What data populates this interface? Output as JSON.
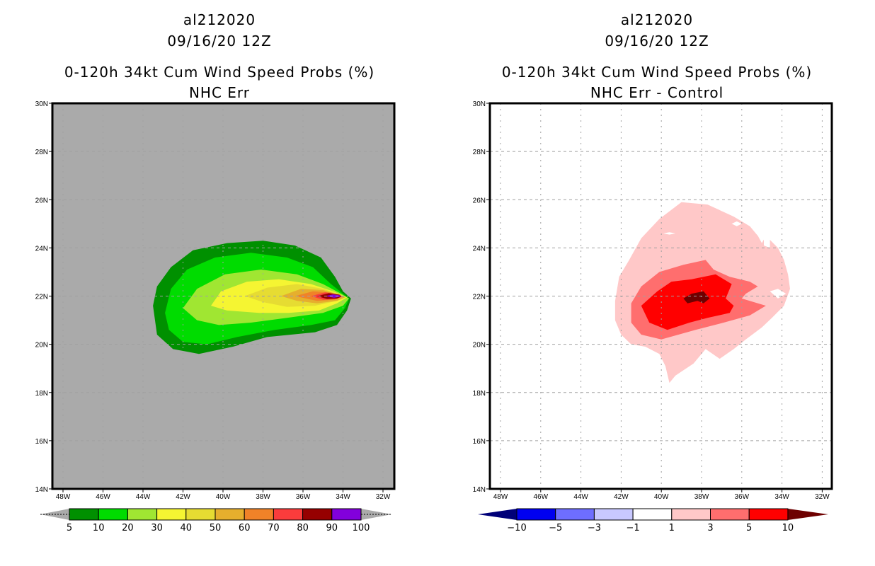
{
  "panels": [
    {
      "id": "left",
      "title_line1": "al212020",
      "title_line2": "09/16/20 12Z",
      "title_line3": "0-120h 34kt Cum Wind Speed Probs (%)",
      "title_line4": "NHC Err",
      "background_color": "#aaaaaa"
    },
    {
      "id": "right",
      "title_line1": "al212020",
      "title_line2": "09/16/20 12Z",
      "title_line3": "0-120h 34kt Cum Wind Speed Probs (%)",
      "title_line4": "NHC Err - Control",
      "background_color": "#ffffff"
    }
  ],
  "chart_data": [
    {
      "type": "heatmap",
      "subtype": "filled-contour-map",
      "title": "al212020 09/16/20 12Z — 0-120h 34kt Cum Wind Speed Probs (%) — NHC Err",
      "x_ticks": [
        "48W",
        "46W",
        "44W",
        "42W",
        "40W",
        "38W",
        "36W",
        "34W",
        "32W"
      ],
      "y_ticks": [
        "30N",
        "28N",
        "26N",
        "24N",
        "22N",
        "20N",
        "18N",
        "16N",
        "14N"
      ],
      "xlim_lonW": [
        48.5,
        31.5
      ],
      "ylim_latN": [
        14,
        30
      ],
      "grid": true,
      "colorbar": {
        "levels": [
          "5",
          "10",
          "20",
          "30",
          "40",
          "50",
          "60",
          "70",
          "80",
          "90",
          "100"
        ],
        "colors": [
          "#009000",
          "#00dc00",
          "#a0e632",
          "#f5f532",
          "#e6dc32",
          "#e6af2d",
          "#f08228",
          "#fa3c3c",
          "#960000",
          "#8200dc"
        ],
        "below_color": "#aaaaaa",
        "above_color": "#aaaaaa"
      },
      "contours": [
        {
          "level": 5,
          "color": "#009000",
          "polygon": [
            [
              43.5,
              21.6
            ],
            [
              43.3,
              22.4
            ],
            [
              42.6,
              23.2
            ],
            [
              41.5,
              23.9
            ],
            [
              39.8,
              24.2
            ],
            [
              38,
              24.3
            ],
            [
              36.4,
              24.1
            ],
            [
              35.1,
              23.6
            ],
            [
              34.4,
              22.8
            ],
            [
              34.0,
              22.2
            ],
            [
              33.6,
              21.9
            ],
            [
              33.8,
              21.4
            ],
            [
              34.3,
              20.8
            ],
            [
              35.4,
              20.5
            ],
            [
              36.6,
              20.4
            ],
            [
              37.8,
              20.3
            ],
            [
              39.5,
              19.9
            ],
            [
              41.2,
              19.6
            ],
            [
              42.5,
              19.8
            ],
            [
              43.3,
              20.4
            ]
          ]
        },
        {
          "level": 10,
          "color": "#00dc00",
          "polygon": [
            [
              42.9,
              21.3
            ],
            [
              42.6,
              22.3
            ],
            [
              41.8,
              23.1
            ],
            [
              40.4,
              23.6
            ],
            [
              38.6,
              23.8
            ],
            [
              36.8,
              23.6
            ],
            [
              35.5,
              23.2
            ],
            [
              34.6,
              22.5
            ],
            [
              34.0,
              22.1
            ],
            [
              33.7,
              21.9
            ],
            [
              33.9,
              21.5
            ],
            [
              34.4,
              21.0
            ],
            [
              35.6,
              20.8
            ],
            [
              37.4,
              20.6
            ],
            [
              39.3,
              20.3
            ],
            [
              40.8,
              20.0
            ],
            [
              42.0,
              20.1
            ],
            [
              42.7,
              20.6
            ]
          ]
        },
        {
          "level": 20,
          "color": "#a0e632",
          "polygon": [
            [
              42.0,
              21.5
            ],
            [
              41.3,
              22.3
            ],
            [
              39.9,
              22.9
            ],
            [
              38.1,
              23.1
            ],
            [
              36.3,
              22.9
            ],
            [
              35.0,
              22.5
            ],
            [
              34.1,
              22.1
            ],
            [
              33.7,
              21.9
            ],
            [
              34.0,
              21.6
            ],
            [
              35.0,
              21.3
            ],
            [
              36.8,
              21.1
            ],
            [
              38.6,
              20.9
            ],
            [
              40.2,
              20.8
            ],
            [
              41.3,
              21.0
            ]
          ]
        },
        {
          "level": 30,
          "color": "#f5f532",
          "polygon": [
            [
              40.6,
              21.6
            ],
            [
              40.1,
              22.2
            ],
            [
              38.8,
              22.6
            ],
            [
              37.2,
              22.7
            ],
            [
              35.6,
              22.5
            ],
            [
              34.5,
              22.2
            ],
            [
              33.8,
              21.95
            ],
            [
              34.3,
              21.7
            ],
            [
              35.2,
              21.4
            ],
            [
              36.7,
              21.3
            ],
            [
              38.2,
              21.3
            ],
            [
              39.8,
              21.4
            ]
          ]
        },
        {
          "level": 40,
          "color": "#e6dc32",
          "polygon": [
            [
              38.9,
              22.0
            ],
            [
              37.8,
              22.35
            ],
            [
              36.3,
              22.5
            ],
            [
              35.0,
              22.3
            ],
            [
              34.1,
              22.05
            ],
            [
              33.85,
              21.95
            ],
            [
              34.3,
              21.8
            ],
            [
              35.4,
              21.6
            ],
            [
              36.8,
              21.55
            ],
            [
              38.0,
              21.75
            ]
          ]
        },
        {
          "level": 50,
          "color": "#e6af2d",
          "polygon": [
            [
              37.1,
              22.0
            ],
            [
              36.1,
              22.3
            ],
            [
              35.0,
              22.25
            ],
            [
              34.2,
              22.05
            ],
            [
              33.9,
              21.95
            ],
            [
              34.3,
              21.8
            ],
            [
              35.3,
              21.7
            ],
            [
              36.3,
              21.8
            ]
          ]
        },
        {
          "level": 60,
          "color": "#f08228",
          "polygon": [
            [
              36.4,
              22.0
            ],
            [
              35.5,
              22.2
            ],
            [
              34.6,
              22.15
            ],
            [
              34.1,
              22.0
            ],
            [
              34.4,
              21.85
            ],
            [
              35.3,
              21.8
            ]
          ]
        },
        {
          "level": 70,
          "color": "#fa3c3c",
          "polygon": [
            [
              35.6,
              22.0
            ],
            [
              34.9,
              22.15
            ],
            [
              34.2,
              22.07
            ],
            [
              34.05,
              21.98
            ],
            [
              34.3,
              21.88
            ],
            [
              35.0,
              21.85
            ]
          ]
        },
        {
          "level": 80,
          "color": "#960000",
          "polygon": [
            [
              35.3,
              22.0
            ],
            [
              34.7,
              22.12
            ],
            [
              34.15,
              22.05
            ],
            [
              34.1,
              21.97
            ],
            [
              34.3,
              21.9
            ],
            [
              34.8,
              21.88
            ]
          ]
        },
        {
          "level": 90,
          "color": "#8200dc",
          "polygon": [
            [
              34.9,
              22.0
            ],
            [
              34.5,
              22.07
            ],
            [
              34.15,
              22.03
            ],
            [
              34.15,
              21.97
            ],
            [
              34.45,
              21.93
            ]
          ]
        }
      ]
    },
    {
      "type": "heatmap",
      "subtype": "filled-contour-map",
      "title": "al212020 09/16/20 12Z — 0-120h 34kt Cum Wind Speed Probs (%) — NHC Err - Control",
      "x_ticks": [
        "48W",
        "46W",
        "44W",
        "42W",
        "40W",
        "38W",
        "36W",
        "34W",
        "32W"
      ],
      "y_ticks": [
        "30N",
        "28N",
        "26N",
        "24N",
        "22N",
        "20N",
        "18N",
        "16N",
        "14N"
      ],
      "xlim_lonW": [
        48.5,
        31.5
      ],
      "ylim_latN": [
        14,
        30
      ],
      "grid": true,
      "colorbar": {
        "levels": [
          "-10",
          "-5",
          "-3",
          "-1",
          "1",
          "3",
          "5",
          "10"
        ],
        "colors": [
          "#0000f0",
          "#6e6eff",
          "#c8c8ff",
          "#ffffff",
          "#ffc8c8",
          "#ff6e6e",
          "#ff0000"
        ],
        "below_color": "#000078",
        "above_color": "#6e0000"
      },
      "contours": [
        {
          "level": 1,
          "color": "#ffc8c8",
          "polygon": [
            [
              42.3,
              21.8
            ],
            [
              42.1,
              22.8
            ],
            [
              41.6,
              23.5
            ],
            [
              41.0,
              24.4
            ],
            [
              40.1,
              25.2
            ],
            [
              39.0,
              25.9
            ],
            [
              37.7,
              25.8
            ],
            [
              36.4,
              25.3
            ],
            [
              35.6,
              24.9
            ],
            [
              35.2,
              24.5
            ],
            [
              35.0,
              24.2
            ],
            [
              34.8,
              24.5
            ],
            [
              34.2,
              24.0
            ],
            [
              33.9,
              23.5
            ],
            [
              33.7,
              22.9
            ],
            [
              33.6,
              22.3
            ],
            [
              33.9,
              21.6
            ],
            [
              34.5,
              21.1
            ],
            [
              35.0,
              20.7
            ],
            [
              35.8,
              20.2
            ],
            [
              36.4,
              19.8
            ],
            [
              37.1,
              19.4
            ],
            [
              37.8,
              19.8
            ],
            [
              38.4,
              19.2
            ],
            [
              39.3,
              18.7
            ],
            [
              39.6,
              18.4
            ],
            [
              39.8,
              19.1
            ],
            [
              40.1,
              19.6
            ],
            [
              40.8,
              19.9
            ],
            [
              41.5,
              20.0
            ],
            [
              42.0,
              20.4
            ],
            [
              42.3,
              21.0
            ]
          ]
        },
        {
          "level": 3,
          "color": "#ff6e6e",
          "polygon": [
            [
              41.5,
              21.7
            ],
            [
              41.0,
              22.4
            ],
            [
              40.1,
              23.0
            ],
            [
              38.9,
              23.3
            ],
            [
              37.8,
              23.5
            ],
            [
              37.4,
              23.1
            ],
            [
              36.6,
              22.8
            ],
            [
              35.6,
              22.6
            ],
            [
              35.2,
              22.4
            ],
            [
              35.8,
              22.1
            ],
            [
              36.0,
              21.9
            ],
            [
              34.8,
              21.6
            ],
            [
              35.6,
              21.2
            ],
            [
              36.9,
              20.9
            ],
            [
              38.3,
              20.6
            ],
            [
              40.0,
              20.2
            ],
            [
              41.0,
              20.4
            ],
            [
              41.5,
              20.9
            ]
          ]
        },
        {
          "level": 5,
          "color": "#ff0000",
          "polygon": [
            [
              41.0,
              21.6
            ],
            [
              40.2,
              22.2
            ],
            [
              39.5,
              22.6
            ],
            [
              38.5,
              22.7
            ],
            [
              37.3,
              22.9
            ],
            [
              36.5,
              22.5
            ],
            [
              36.8,
              21.9
            ],
            [
              36.4,
              21.6
            ],
            [
              36.6,
              21.3
            ],
            [
              37.7,
              21.1
            ],
            [
              38.6,
              20.9
            ],
            [
              39.7,
              20.6
            ],
            [
              40.6,
              20.9
            ]
          ]
        },
        {
          "level": 10,
          "color": "#6e0000",
          "polygon": [
            [
              38.9,
              21.9
            ],
            [
              38.5,
              22.1
            ],
            [
              37.9,
              22.2
            ],
            [
              37.6,
              21.9
            ],
            [
              37.9,
              21.7
            ],
            [
              38.2,
              21.8
            ],
            [
              38.7,
              21.7
            ]
          ]
        }
      ],
      "holes_level_minus1_to_1": [
        [
          [
            39.9,
            24.6
          ],
          [
            39.6,
            24.65
          ],
          [
            39.3,
            24.6
          ],
          [
            39.6,
            24.55
          ]
        ],
        [
          [
            36.5,
            25.0
          ],
          [
            36.25,
            25.1
          ],
          [
            36.0,
            25.0
          ],
          [
            36.25,
            24.9
          ]
        ],
        [
          [
            34.9,
            24.5
          ],
          [
            34.6,
            24.6
          ],
          [
            34.6,
            24.0
          ],
          [
            34.9,
            24.1
          ]
        ],
        [
          [
            34.6,
            22.2
          ],
          [
            34.2,
            22.3
          ],
          [
            33.8,
            22.1
          ],
          [
            34.2,
            21.9
          ]
        ]
      ]
    }
  ]
}
